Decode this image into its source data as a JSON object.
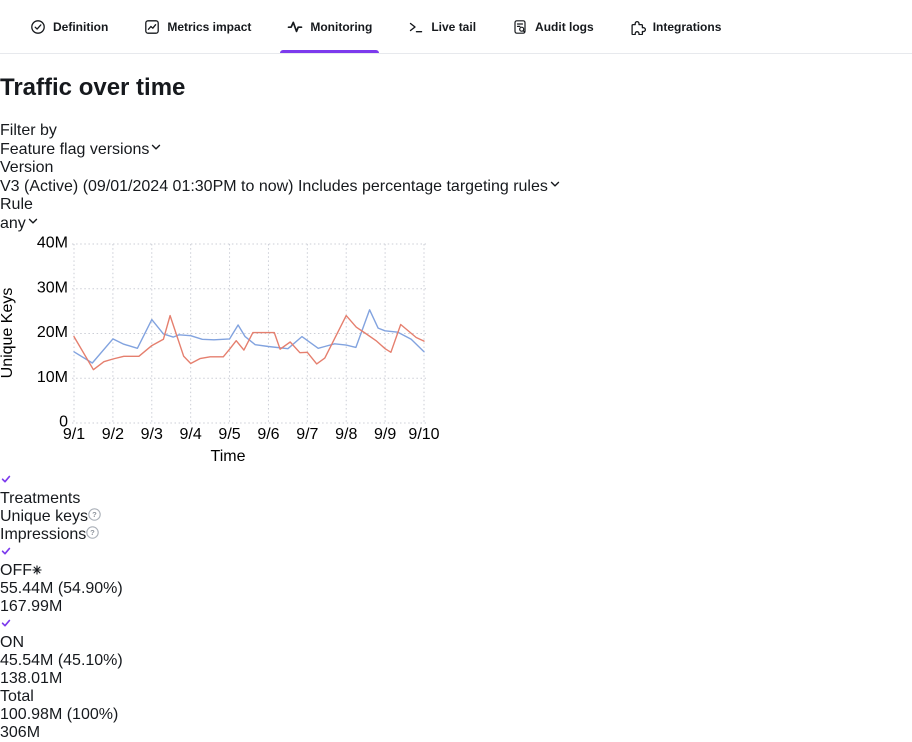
{
  "tabs": {
    "items": [
      {
        "label": "Definition",
        "icon": "definition-icon",
        "active": false
      },
      {
        "label": "Metrics impact",
        "icon": "metrics-impact-icon",
        "active": false
      },
      {
        "label": "Monitoring",
        "icon": "monitoring-icon",
        "active": true
      },
      {
        "label": "Live tail",
        "icon": "live-tail-icon",
        "active": false
      },
      {
        "label": "Audit logs",
        "icon": "audit-logs-icon",
        "active": false
      },
      {
        "label": "Integrations",
        "icon": "integrations-icon",
        "active": false
      }
    ]
  },
  "page_title": "Traffic over time",
  "filters": {
    "rows": [
      {
        "label": "Filter by",
        "value": "Feature flag versions"
      },
      {
        "label": "Version",
        "value": "V3 (Active) (09/01/2024 01:30PM to now) Includes percentage targeting rules"
      },
      {
        "label": "Rule",
        "value": "any"
      }
    ]
  },
  "chart_data": {
    "type": "line",
    "xlabel": "Time",
    "ylabel": "Unique Keys",
    "x_ticks": [
      "9/1",
      "9/2",
      "9/3",
      "9/4",
      "9/5",
      "9/6",
      "9/7",
      "9/8",
      "9/9",
      "9/10"
    ],
    "y_ticks": [
      "0",
      "10M",
      "20M",
      "30M",
      "40M"
    ],
    "y_tick_values_millions": [
      0,
      10,
      20,
      30,
      40
    ],
    "ylim_millions": [
      0,
      40
    ],
    "x_range_days": [
      0,
      9
    ],
    "x_unit": "days since 9/1",
    "grid": "dotted",
    "legend_position": "table-right",
    "series": [
      {
        "name": "OFF",
        "color": "#82a3df",
        "points": [
          [
            0,
            15.9
          ],
          [
            0.47,
            13.4
          ],
          [
            1,
            18.8
          ],
          [
            1.28,
            17.6
          ],
          [
            1.63,
            16.7
          ],
          [
            2,
            23.1
          ],
          [
            2.3,
            19.9
          ],
          [
            2.55,
            19.2
          ],
          [
            2.7,
            19.7
          ],
          [
            3,
            19.5
          ],
          [
            3.3,
            18.7
          ],
          [
            3.6,
            18.6
          ],
          [
            4,
            18.8
          ],
          [
            4.22,
            21.9
          ],
          [
            4.4,
            19.3
          ],
          [
            4.66,
            17.5
          ],
          [
            5,
            17.1
          ],
          [
            5.5,
            16.6
          ],
          [
            5.86,
            19.3
          ],
          [
            6.28,
            16.7
          ],
          [
            6.45,
            17.1
          ],
          [
            6.7,
            17.7
          ],
          [
            7,
            17.4
          ],
          [
            7.25,
            16.9
          ],
          [
            7.6,
            25.3
          ],
          [
            7.82,
            21.2
          ],
          [
            8,
            20.6
          ],
          [
            8.33,
            20.3
          ],
          [
            8.67,
            18.7
          ],
          [
            9,
            15.9
          ]
        ]
      },
      {
        "name": "ON",
        "color": "#e57f6e",
        "points": [
          [
            0,
            19.3
          ],
          [
            0.5,
            11.9
          ],
          [
            0.77,
            13.7
          ],
          [
            1,
            14.3
          ],
          [
            1.28,
            14.9
          ],
          [
            1.67,
            14.9
          ],
          [
            2,
            17.3
          ],
          [
            2.3,
            18.7
          ],
          [
            2.47,
            24
          ],
          [
            2.82,
            14.9
          ],
          [
            3,
            13.3
          ],
          [
            3.24,
            14.4
          ],
          [
            3.5,
            14.8
          ],
          [
            3.84,
            14.8
          ],
          [
            4,
            16.5
          ],
          [
            4.17,
            18.4
          ],
          [
            4.37,
            16.3
          ],
          [
            4.6,
            20.2
          ],
          [
            5.15,
            20.2
          ],
          [
            5.3,
            16.5
          ],
          [
            5.56,
            18.1
          ],
          [
            5.81,
            15.7
          ],
          [
            6,
            15.8
          ],
          [
            6.24,
            13.2
          ],
          [
            6.45,
            14.5
          ],
          [
            7,
            24
          ],
          [
            7.26,
            21.4
          ],
          [
            7.5,
            20
          ],
          [
            7.78,
            18.3
          ],
          [
            8,
            16.6
          ],
          [
            8.15,
            15.8
          ],
          [
            8.4,
            22
          ],
          [
            8.8,
            19.1
          ],
          [
            9,
            18.3
          ]
        ]
      }
    ]
  },
  "table": {
    "headers": {
      "treatments": "Treatments",
      "unique_keys": "Unique keys",
      "impressions": "Impressions"
    },
    "rows": [
      {
        "treatment": "OFF",
        "color": "#6590e6",
        "checked": true,
        "has_default_marker": true,
        "unique_keys": "55.44M (54.90%)",
        "impressions": "167.99M"
      },
      {
        "treatment": "ON",
        "color": "#e15a4b",
        "checked": true,
        "has_default_marker": false,
        "unique_keys": "45.54M (45.10%)",
        "impressions": "138.01M"
      }
    ],
    "total": {
      "label": "Total",
      "unique_keys": "100.98M (100%)",
      "impressions": "306M"
    }
  },
  "colors": {
    "accent_purple": "#7c3aed",
    "checkbox_purple": "#8b5cf6",
    "off_blue": "#6590e6",
    "on_red": "#e15a4b",
    "panel_bg": "#f4f5f7",
    "border": "#e6e8ec",
    "grid": "#cbced6",
    "text_secondary": "#70777f"
  }
}
